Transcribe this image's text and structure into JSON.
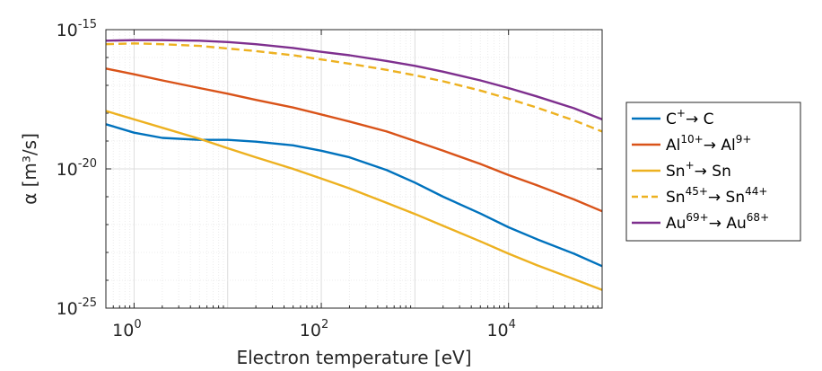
{
  "chart_data": {
    "type": "line",
    "title": "",
    "xlabel": "Electron temperature [eV]",
    "ylabel": "α [m³/s]",
    "xscale": "log",
    "yscale": "log",
    "xlim": [
      0.5,
      100000
    ],
    "ylim": [
      1e-25,
      1e-15
    ],
    "grid": true,
    "legend_position": "outside-right",
    "x_ticks": [
      {
        "value": 1,
        "label": "10",
        "sup": "0"
      },
      {
        "value": 100,
        "label": "10",
        "sup": "2"
      },
      {
        "value": 10000,
        "label": "10",
        "sup": "4"
      }
    ],
    "y_ticks": [
      {
        "value": 1e-25,
        "label": "10",
        "sup": "-25"
      },
      {
        "value": 1e-20,
        "label": "10",
        "sup": "-20"
      },
      {
        "value": 1e-15,
        "label": "10",
        "sup": "-15"
      }
    ],
    "x": [
      0.5,
      1,
      2,
      5,
      10,
      20,
      50,
      100,
      200,
      500,
      1000,
      2000,
      5000,
      10000,
      20000,
      50000,
      100000
    ],
    "series": [
      {
        "label": [
          "C",
          "+",
          "→ C",
          ""
        ],
        "color": "#0072BD",
        "dash": "solid",
        "values": [
          4e-19,
          2e-19,
          1.3e-19,
          1.1e-19,
          1.1e-19,
          9.5e-20,
          7e-20,
          4.5e-20,
          2.6e-20,
          9e-21,
          3.2e-21,
          1e-21,
          2.5e-22,
          8e-23,
          3e-23,
          9e-24,
          3.2e-24
        ]
      },
      {
        "label": [
          "Al",
          "10+",
          "→ Al",
          "9+"
        ],
        "color": "#D95319",
        "dash": "solid",
        "values": [
          4e-17,
          2.5e-17,
          1.5e-17,
          8e-18,
          5e-18,
          3e-18,
          1.6e-18,
          9e-19,
          5e-19,
          2.2e-19,
          1e-19,
          4.5e-20,
          1.5e-20,
          6e-21,
          2.6e-21,
          8e-22,
          3e-22
        ]
      },
      {
        "label": [
          "Sn",
          "+",
          "→ Sn",
          ""
        ],
        "color": "#EDB120",
        "dash": "solid",
        "values": [
          1.2e-18,
          6e-19,
          3e-19,
          1.2e-19,
          5.5e-20,
          2.6e-20,
          1e-20,
          4.5e-21,
          2e-21,
          6e-22,
          2.4e-22,
          9e-23,
          2.5e-23,
          9e-24,
          3.5e-24,
          1.1e-24,
          4.5e-25
        ]
      },
      {
        "label": [
          "Sn",
          "45+",
          "→ Sn",
          "44+"
        ],
        "color": "#EDB120",
        "dash": "dashed",
        "values": [
          3e-16,
          3.2e-16,
          3e-16,
          2.6e-16,
          2.1e-16,
          1.7e-16,
          1.2e-16,
          8.5e-17,
          6e-17,
          3.6e-17,
          2.3e-17,
          1.4e-17,
          6.5e-18,
          3.3e-18,
          1.6e-18,
          5.5e-19,
          2.2e-19
        ]
      },
      {
        "label": [
          "Au",
          "69+",
          "→ Au",
          "68+"
        ],
        "color": "#7E2F8E",
        "dash": "solid",
        "values": [
          4e-16,
          4.2e-16,
          4.2e-16,
          4e-16,
          3.6e-16,
          3e-16,
          2.2e-16,
          1.6e-16,
          1.2e-16,
          7.5e-17,
          5e-17,
          3.1e-17,
          1.5e-17,
          8e-18,
          4e-18,
          1.5e-18,
          6e-19
        ]
      }
    ]
  }
}
